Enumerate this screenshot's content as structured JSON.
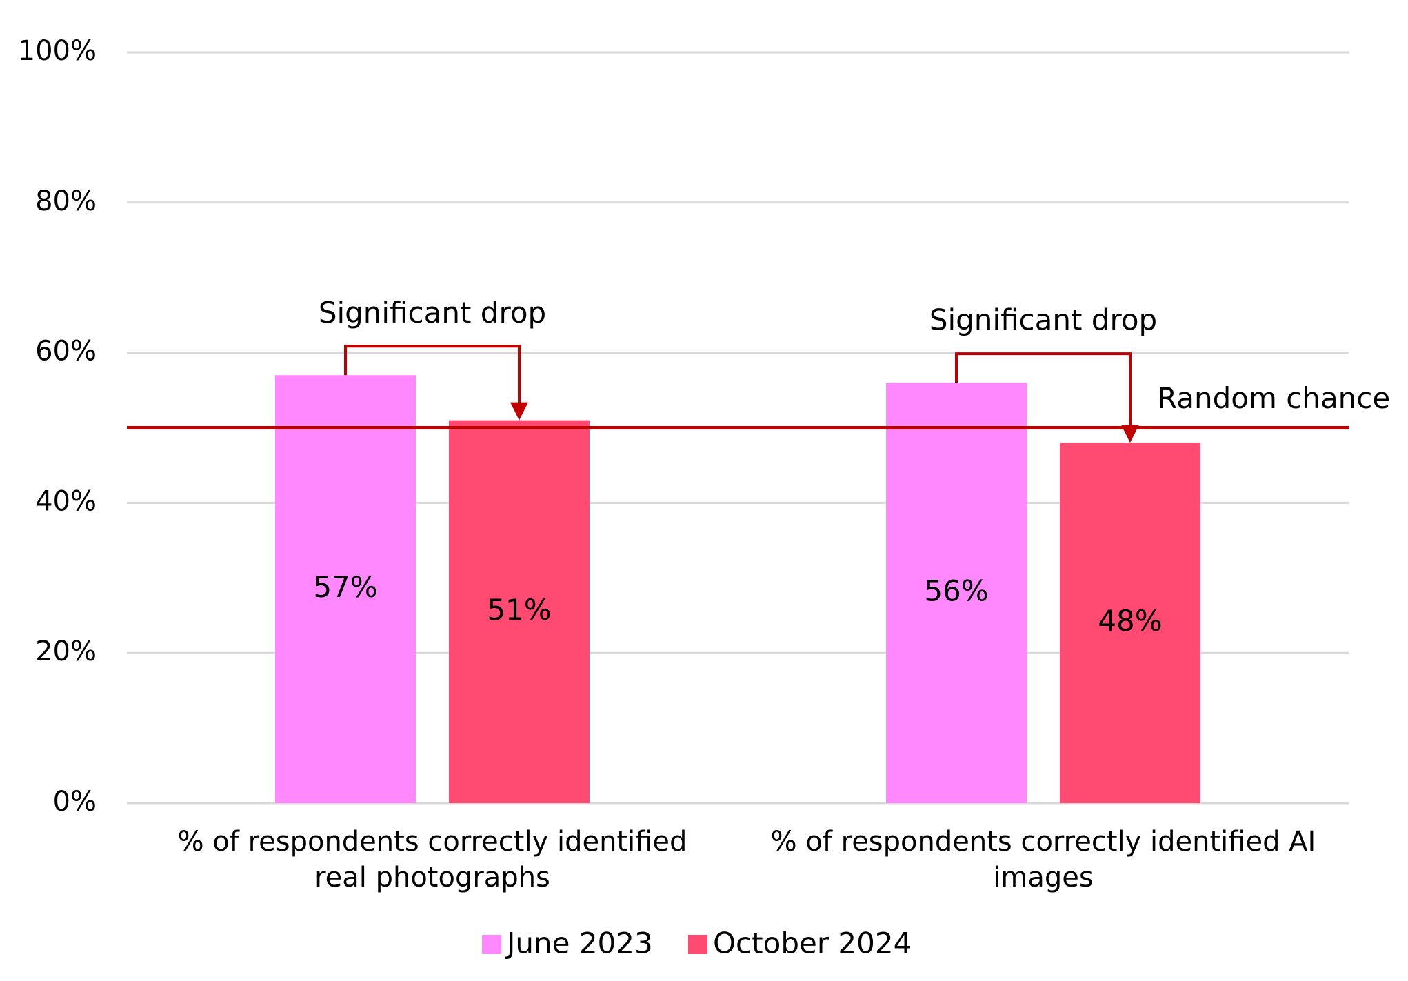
{
  "chart_data": {
    "type": "bar",
    "categories": [
      "% of respondents correctly identified real photographs",
      "% of respondents correctly identified AI images"
    ],
    "series": [
      {
        "name": "June 2023",
        "color": "#ff88ff",
        "values": [
          57,
          56
        ],
        "value_labels": [
          "57%",
          "56%"
        ]
      },
      {
        "name": "October 2024",
        "color": "#ff4a72",
        "values": [
          51,
          48
        ],
        "value_labels": [
          "51%",
          "48%"
        ]
      }
    ],
    "ylim": [
      0,
      100
    ],
    "yticks": [
      {
        "value": 0,
        "label": "0%"
      },
      {
        "value": 20,
        "label": "20%"
      },
      {
        "value": 40,
        "label": "40%"
      },
      {
        "value": 60,
        "label": "60%"
      },
      {
        "value": 80,
        "label": "80%"
      },
      {
        "value": 100,
        "label": "100%"
      }
    ],
    "grid": true,
    "reference_line": {
      "text": "Random chance",
      "value": 50,
      "color": "#c00000"
    },
    "annotations": [
      {
        "text": "Significant drop"
      },
      {
        "text": "Significant drop"
      }
    ],
    "legend": "bottom"
  }
}
